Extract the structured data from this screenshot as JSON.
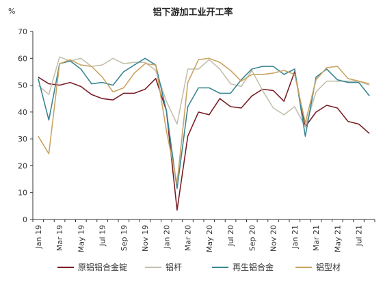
{
  "chart_data": {
    "type": "line",
    "title": "铝下游加工业开工率",
    "ylabel": "%",
    "xlabel": "",
    "ylim": [
      0,
      70
    ],
    "yticks": [
      0,
      10,
      20,
      30,
      40,
      50,
      60,
      70
    ],
    "grid": false,
    "legend_position": "bottom",
    "x": [
      "Jan 19",
      "Feb 19",
      "Mar 19",
      "Apr 19",
      "May 19",
      "Jun 19",
      "Jul 19",
      "Aug 19",
      "Sep 19",
      "Oct 19",
      "Nov 19",
      "Dec 19",
      "Jan 20",
      "Feb 20",
      "Mar 20",
      "Apr 20",
      "May 20",
      "Jun 20",
      "Jul 20",
      "Aug 20",
      "Sep 20",
      "Oct 20",
      "Nov 20",
      "Dec 20",
      "Jan 21",
      "Feb 21",
      "Mar 21",
      "Apr 21",
      "May 21",
      "Jun 21",
      "Jul 21",
      "Aug 21"
    ],
    "x_tick_labels": [
      "Jan 19",
      "Mar 19",
      "May 19",
      "Jul 19",
      "Sep 19",
      "Nov 19",
      "Jan 20",
      "Mar 20",
      "May 20",
      "Jul 20",
      "Sep 20",
      "Nov 20",
      "Jan 21",
      "Mar 21",
      "May 21",
      "Jul 21"
    ],
    "series": [
      {
        "name": "原铝铝合金锭",
        "color": "#7a1e24",
        "values": [
          53,
          50.5,
          50,
          51,
          49.5,
          46.5,
          45,
          44.5,
          47,
          47,
          48.5,
          52.5,
          40.5,
          3.5,
          31,
          40,
          39,
          45,
          42,
          41.5,
          46,
          48.5,
          48,
          44,
          55,
          34.5,
          40,
          42.5,
          41.5,
          36.5,
          35.5,
          32
        ]
      },
      {
        "name": "铝杆",
        "color": "#c4c0ad",
        "values": [
          50,
          46.5,
          60.5,
          59,
          60,
          57,
          57.5,
          60,
          58,
          58.5,
          58.5,
          55.5,
          44,
          35.5,
          56,
          56,
          59.5,
          56,
          50.5,
          49.5,
          55.5,
          48,
          41.5,
          39,
          42,
          34.5,
          47.5,
          51.5,
          51.5,
          51.5,
          51.5,
          50
        ]
      },
      {
        "name": "再生铝合金",
        "color": "#3a8693",
        "values": [
          52.5,
          37,
          58,
          59,
          56,
          50.5,
          51,
          50,
          55,
          57.5,
          60,
          57.5,
          40.5,
          11.5,
          42,
          49,
          49,
          47,
          47,
          52,
          56,
          57,
          57,
          54,
          56,
          31,
          53,
          56,
          52,
          51,
          51,
          46
        ]
      },
      {
        "name": "铝型材",
        "color": "#c9a463",
        "values": [
          31,
          24.5,
          58,
          59.5,
          57.5,
          57,
          53,
          47.5,
          49,
          54.5,
          58,
          57.5,
          33,
          13.5,
          51,
          59.5,
          60,
          58.5,
          55.5,
          51.5,
          54,
          54,
          54.5,
          55.5,
          54,
          36,
          52,
          56.5,
          57,
          52.5,
          51.5,
          50.5
        ]
      }
    ]
  }
}
